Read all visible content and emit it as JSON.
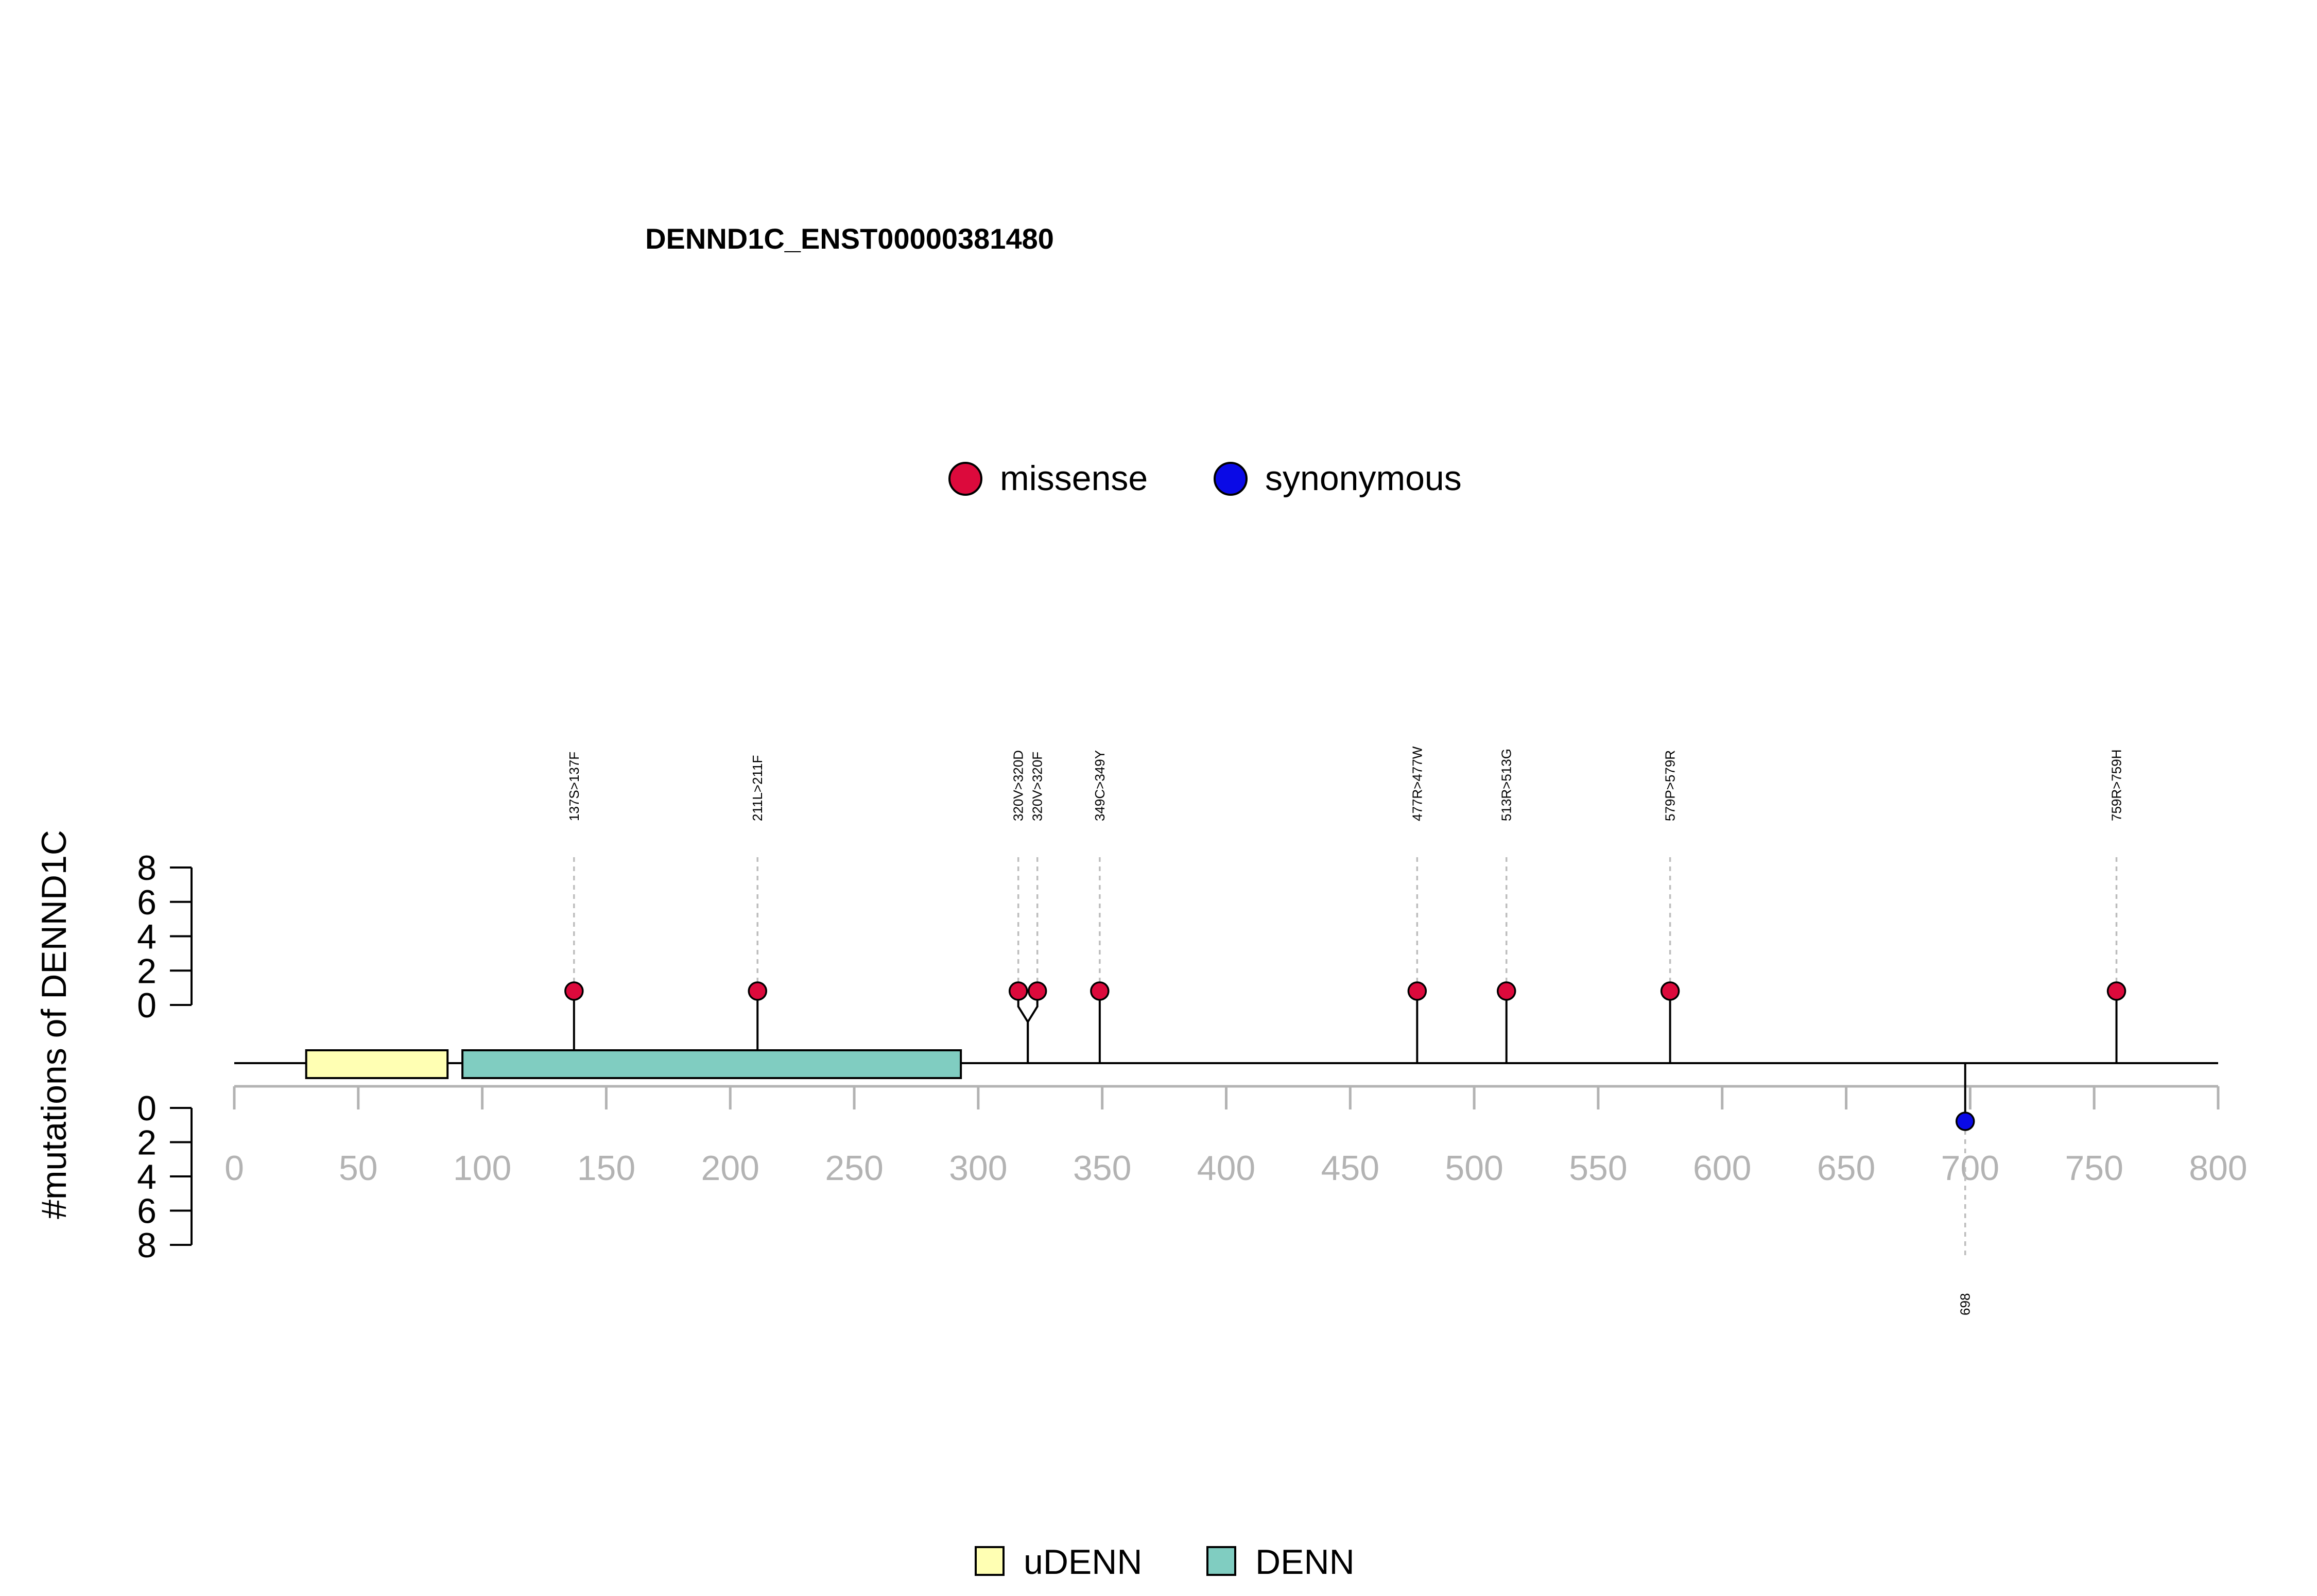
{
  "chart_data": {
    "type": "lollipop",
    "title": "DENND1C_ENST00000381480",
    "ylabel": "#mutations of DENND1C",
    "xlim": [
      0,
      800
    ],
    "x_ticks": [
      0,
      50,
      100,
      150,
      200,
      250,
      300,
      350,
      400,
      450,
      500,
      550,
      600,
      650,
      700,
      750,
      800
    ],
    "y_ticks": [
      0,
      2,
      4,
      6,
      8
    ],
    "ylim": [
      0,
      8
    ],
    "mutation_legend": [
      {
        "name": "missense",
        "color": "#dc0a3c"
      },
      {
        "name": "synonymous",
        "color": "#0a0ae6"
      }
    ],
    "domain_legend": [
      {
        "name": "uDENN",
        "color": "#ffffb3"
      },
      {
        "name": "DENN",
        "color": "#80cdc1"
      }
    ],
    "domains": [
      {
        "name": "uDENN",
        "start": 29,
        "end": 86
      },
      {
        "name": "DENN",
        "start": 92,
        "end": 293
      }
    ],
    "mutations_top": [
      {
        "pos": 137,
        "label": "137S>137F",
        "type": "missense",
        "count": 1
      },
      {
        "pos": 211,
        "label": "211L>211F",
        "type": "missense",
        "count": 1
      },
      {
        "pos": 320,
        "label": "320V>320D",
        "type": "missense",
        "count": 1
      },
      {
        "pos": 320,
        "label": "320V>320F",
        "type": "missense",
        "count": 1
      },
      {
        "pos": 349,
        "label": "349C>349Y",
        "type": "missense",
        "count": 1
      },
      {
        "pos": 477,
        "label": "477R>477W",
        "type": "missense",
        "count": 1
      },
      {
        "pos": 513,
        "label": "513R>513G",
        "type": "missense",
        "count": 1
      },
      {
        "pos": 579,
        "label": "579P>579R",
        "type": "missense",
        "count": 1
      },
      {
        "pos": 759,
        "label": "759R>759H",
        "type": "missense",
        "count": 1
      }
    ],
    "mutations_bottom": [
      {
        "pos": 698,
        "label": "698",
        "type": "synonymous",
        "count": 1
      }
    ]
  }
}
